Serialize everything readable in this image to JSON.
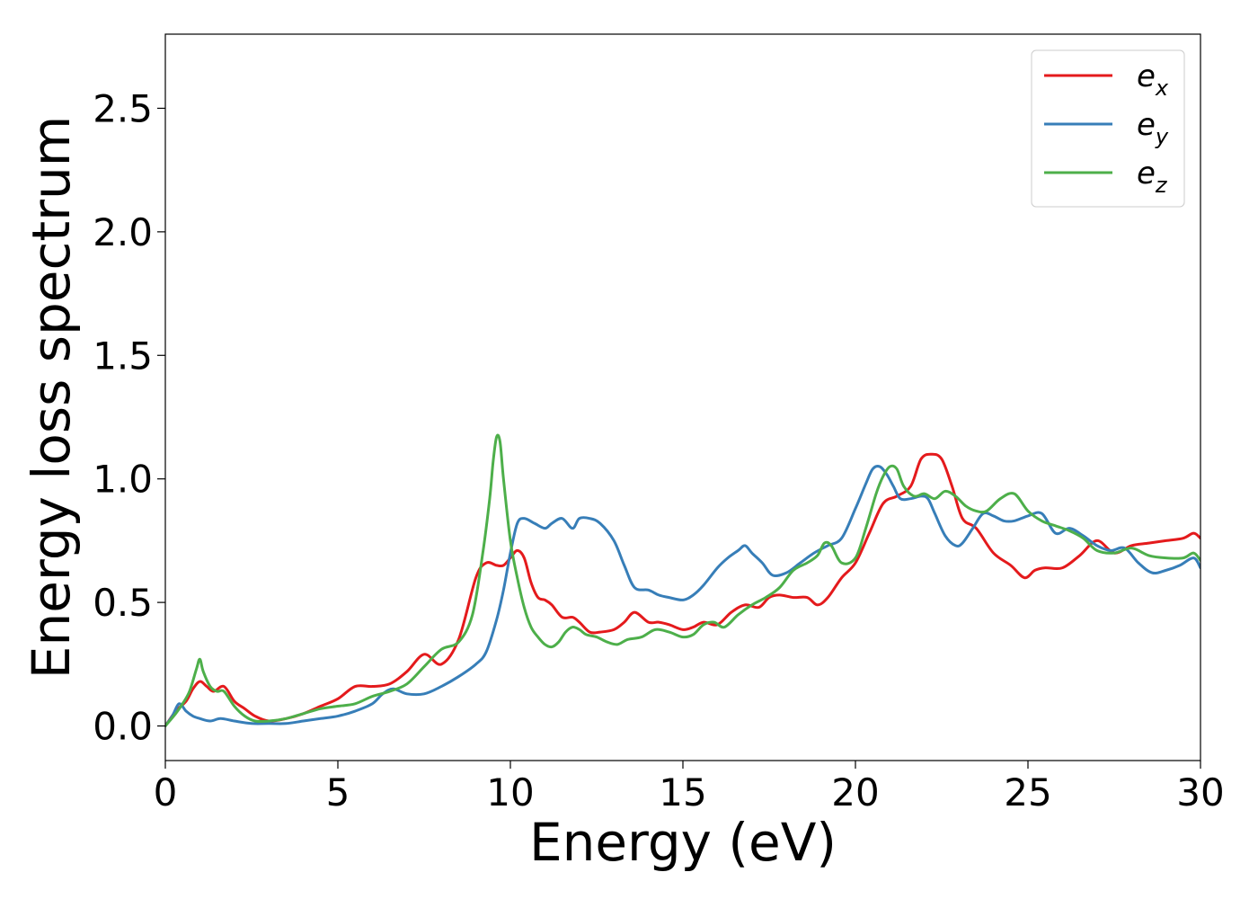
{
  "chart_data": {
    "type": "line",
    "title": "",
    "xlabel": "Energy (eV)",
    "ylabel": "Energy loss spectrum",
    "xlim": [
      0,
      30
    ],
    "ylim": [
      -0.14,
      2.8
    ],
    "xticks": [
      0,
      5,
      10,
      15,
      20,
      25,
      30
    ],
    "xtick_labels": [
      "0",
      "5",
      "10",
      "15",
      "20",
      "25",
      "30"
    ],
    "yticks": [
      0.0,
      0.5,
      1.0,
      1.5,
      2.0,
      2.5
    ],
    "ytick_labels": [
      "0.0",
      "0.5",
      "1.0",
      "1.5",
      "2.0",
      "2.5"
    ],
    "grid": false,
    "legend_position": "top-right",
    "series": [
      {
        "name": "e_x",
        "legend_main": "e",
        "legend_sub": "x",
        "color": "#e41a1c",
        "x": [
          0,
          0.3,
          0.6,
          0.8,
          1.0,
          1.2,
          1.4,
          1.7,
          2.0,
          2.3,
          2.6,
          3.0,
          3.5,
          4.0,
          4.5,
          5.0,
          5.5,
          6.0,
          6.5,
          7.0,
          7.5,
          8.0,
          8.5,
          9.0,
          9.3,
          9.6,
          9.8,
          10.0,
          10.2,
          10.4,
          10.6,
          10.8,
          11.0,
          11.2,
          11.5,
          11.8,
          12.0,
          12.3,
          12.6,
          13.0,
          13.3,
          13.6,
          14.0,
          14.3,
          14.6,
          15.0,
          15.3,
          15.6,
          16.0,
          16.4,
          16.8,
          17.2,
          17.5,
          17.8,
          18.2,
          18.6,
          18.9,
          19.2,
          19.6,
          20.0,
          20.4,
          20.8,
          21.2,
          21.6,
          21.9,
          22.2,
          22.5,
          22.8,
          23.1,
          23.5,
          24.0,
          24.5,
          24.9,
          25.2,
          25.5,
          26.0,
          26.5,
          27.0,
          27.5,
          28.0,
          28.5,
          29.0,
          29.5,
          29.8,
          30.0
        ],
        "y": [
          0.0,
          0.06,
          0.1,
          0.15,
          0.18,
          0.16,
          0.14,
          0.16,
          0.1,
          0.07,
          0.04,
          0.02,
          0.03,
          0.05,
          0.08,
          0.11,
          0.16,
          0.16,
          0.17,
          0.22,
          0.29,
          0.25,
          0.35,
          0.6,
          0.66,
          0.65,
          0.65,
          0.68,
          0.71,
          0.68,
          0.58,
          0.52,
          0.51,
          0.49,
          0.44,
          0.44,
          0.42,
          0.38,
          0.38,
          0.39,
          0.42,
          0.46,
          0.42,
          0.42,
          0.41,
          0.39,
          0.4,
          0.42,
          0.41,
          0.46,
          0.49,
          0.48,
          0.52,
          0.53,
          0.52,
          0.52,
          0.49,
          0.52,
          0.6,
          0.66,
          0.78,
          0.9,
          0.93,
          0.97,
          1.08,
          1.1,
          1.08,
          0.97,
          0.84,
          0.8,
          0.7,
          0.65,
          0.6,
          0.63,
          0.64,
          0.64,
          0.69,
          0.75,
          0.7,
          0.73,
          0.74,
          0.75,
          0.76,
          0.78,
          0.76
        ]
      },
      {
        "name": "e_y",
        "legend_main": "e",
        "legend_sub": "y",
        "color": "#377eb8",
        "x": [
          0,
          0.2,
          0.4,
          0.6,
          0.8,
          1.0,
          1.3,
          1.6,
          2.0,
          2.5,
          3.0,
          3.5,
          4.0,
          4.5,
          5.0,
          5.5,
          6.0,
          6.3,
          6.6,
          7.0,
          7.5,
          8.0,
          8.5,
          9.0,
          9.3,
          9.6,
          9.8,
          10.0,
          10.2,
          10.4,
          10.7,
          11.0,
          11.2,
          11.5,
          11.8,
          12.0,
          12.3,
          12.6,
          13.0,
          13.3,
          13.6,
          14.0,
          14.3,
          14.6,
          15.0,
          15.3,
          15.6,
          16.0,
          16.3,
          16.6,
          16.8,
          17.0,
          17.3,
          17.6,
          18.0,
          18.4,
          18.8,
          19.2,
          19.6,
          20.0,
          20.3,
          20.5,
          20.7,
          20.9,
          21.1,
          21.3,
          21.6,
          21.9,
          22.1,
          22.3,
          22.6,
          22.9,
          23.1,
          23.4,
          23.7,
          24.0,
          24.3,
          24.6,
          25.0,
          25.4,
          25.8,
          26.2,
          26.6,
          27.0,
          27.4,
          27.8,
          28.2,
          28.6,
          29.0,
          29.4,
          29.8,
          30.0
        ],
        "y": [
          0.0,
          0.04,
          0.09,
          0.06,
          0.04,
          0.03,
          0.02,
          0.03,
          0.02,
          0.01,
          0.01,
          0.01,
          0.02,
          0.03,
          0.04,
          0.06,
          0.09,
          0.13,
          0.15,
          0.13,
          0.13,
          0.16,
          0.2,
          0.25,
          0.3,
          0.43,
          0.55,
          0.7,
          0.82,
          0.84,
          0.82,
          0.8,
          0.82,
          0.84,
          0.8,
          0.84,
          0.84,
          0.82,
          0.75,
          0.65,
          0.56,
          0.55,
          0.53,
          0.52,
          0.51,
          0.53,
          0.57,
          0.64,
          0.68,
          0.71,
          0.73,
          0.7,
          0.66,
          0.61,
          0.62,
          0.66,
          0.7,
          0.73,
          0.76,
          0.88,
          0.98,
          1.04,
          1.05,
          1.02,
          0.97,
          0.92,
          0.92,
          0.93,
          0.92,
          0.86,
          0.77,
          0.73,
          0.74,
          0.8,
          0.86,
          0.85,
          0.83,
          0.83,
          0.85,
          0.86,
          0.78,
          0.8,
          0.77,
          0.73,
          0.71,
          0.72,
          0.66,
          0.62,
          0.63,
          0.65,
          0.68,
          0.64
        ]
      },
      {
        "name": "e_z",
        "legend_main": "e",
        "legend_sub": "z",
        "color": "#4daf4a",
        "x": [
          0,
          0.3,
          0.5,
          0.7,
          0.9,
          1.0,
          1.1,
          1.3,
          1.5,
          1.7,
          2.0,
          2.3,
          2.6,
          3.0,
          3.5,
          4.0,
          4.5,
          5.0,
          5.5,
          6.0,
          6.5,
          7.0,
          7.5,
          8.0,
          8.5,
          8.9,
          9.2,
          9.4,
          9.5,
          9.6,
          9.7,
          9.8,
          10.0,
          10.2,
          10.4,
          10.6,
          10.8,
          11.0,
          11.2,
          11.4,
          11.6,
          11.8,
          12.0,
          12.2,
          12.5,
          12.8,
          13.1,
          13.4,
          13.8,
          14.2,
          14.6,
          15.0,
          15.3,
          15.6,
          15.9,
          16.2,
          16.6,
          17.0,
          17.4,
          17.8,
          18.2,
          18.6,
          18.9,
          19.1,
          19.3,
          19.6,
          20.0,
          20.3,
          20.6,
          20.8,
          21.0,
          21.2,
          21.4,
          21.7,
          22.0,
          22.3,
          22.6,
          22.9,
          23.2,
          23.5,
          23.8,
          24.2,
          24.6,
          25.0,
          25.4,
          25.8,
          26.2,
          26.6,
          27.0,
          27.5,
          28.0,
          28.5,
          29.0,
          29.5,
          29.8,
          30.0
        ],
        "y": [
          0.0,
          0.05,
          0.09,
          0.14,
          0.23,
          0.27,
          0.22,
          0.16,
          0.14,
          0.14,
          0.08,
          0.04,
          0.02,
          0.02,
          0.03,
          0.05,
          0.07,
          0.08,
          0.09,
          0.12,
          0.14,
          0.17,
          0.24,
          0.31,
          0.34,
          0.45,
          0.7,
          0.92,
          1.07,
          1.17,
          1.15,
          1.0,
          0.75,
          0.6,
          0.48,
          0.4,
          0.36,
          0.33,
          0.32,
          0.34,
          0.38,
          0.4,
          0.39,
          0.37,
          0.36,
          0.34,
          0.33,
          0.35,
          0.36,
          0.39,
          0.38,
          0.36,
          0.37,
          0.41,
          0.42,
          0.4,
          0.45,
          0.49,
          0.52,
          0.56,
          0.63,
          0.66,
          0.69,
          0.74,
          0.73,
          0.66,
          0.68,
          0.8,
          0.94,
          1.01,
          1.05,
          1.04,
          0.97,
          0.93,
          0.94,
          0.92,
          0.95,
          0.93,
          0.89,
          0.87,
          0.87,
          0.92,
          0.94,
          0.87,
          0.83,
          0.81,
          0.79,
          0.76,
          0.71,
          0.7,
          0.72,
          0.69,
          0.68,
          0.68,
          0.7,
          0.67
        ]
      }
    ]
  }
}
